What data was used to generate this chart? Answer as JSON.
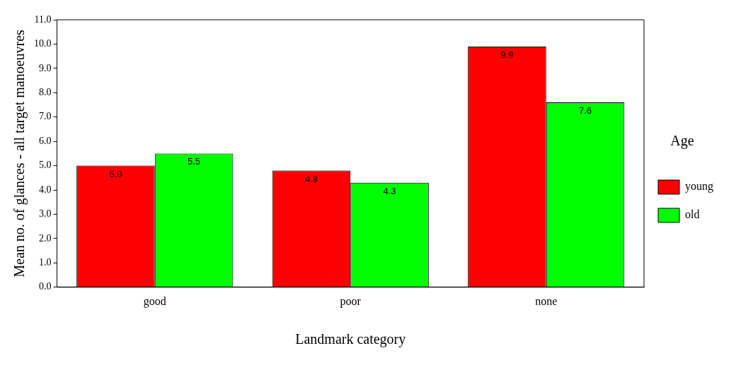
{
  "chart_data": {
    "type": "bar",
    "xlabel": "Landmark category",
    "ylabel": "Mean no. of glances - all target manoeuvres",
    "legend_title": "Age",
    "categories": [
      "good",
      "poor",
      "none"
    ],
    "series": [
      {
        "name": "young",
        "color": "#ff0000",
        "values": [
          5.0,
          4.8,
          9.9
        ],
        "value_labels": [
          "5.0",
          "4.8",
          "9.9"
        ]
      },
      {
        "name": "old",
        "color": "#00ff00",
        "values": [
          5.5,
          4.3,
          7.6
        ],
        "value_labels": [
          "5.5",
          "4.3",
          "7.6"
        ]
      }
    ],
    "ylim": [
      0,
      11
    ],
    "yticks": [
      {
        "value": 0,
        "label": "0.0"
      },
      {
        "value": 1,
        "label": "1.0"
      },
      {
        "value": 2,
        "label": "2.0"
      },
      {
        "value": 3,
        "label": "3.0"
      },
      {
        "value": 4,
        "label": "4.0"
      },
      {
        "value": 5,
        "label": "5.0"
      },
      {
        "value": 6,
        "label": "6.0"
      },
      {
        "value": 7,
        "label": "7.0"
      },
      {
        "value": 8,
        "label": "8.0"
      },
      {
        "value": 9,
        "label": "9.0"
      },
      {
        "value": 10,
        "label": "10.0"
      },
      {
        "value": 11,
        "label": "11.0"
      }
    ],
    "grid": false,
    "legend": "right"
  }
}
